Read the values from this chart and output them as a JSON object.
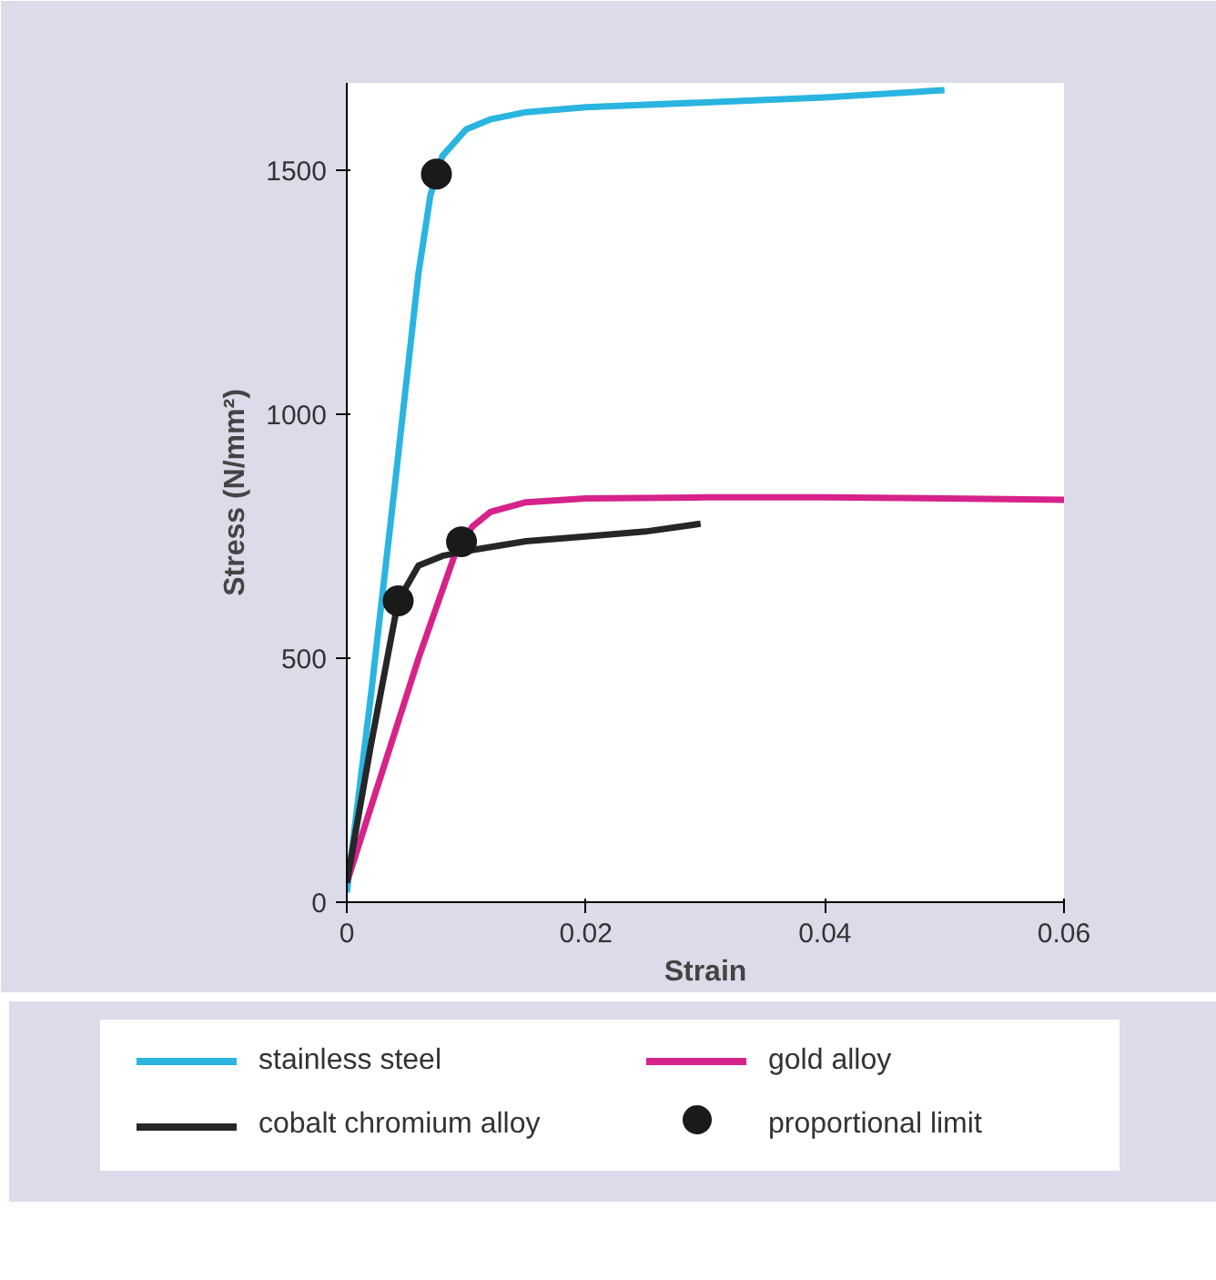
{
  "chart_data": {
    "type": "line",
    "xlabel": "Strain",
    "ylabel": "Stress (N/mm²)",
    "xlim": [
      0,
      0.06
    ],
    "ylim": [
      0,
      1680
    ],
    "xticks": [
      0,
      0.02,
      0.04,
      0.06
    ],
    "yticks": [
      0,
      500,
      1000,
      1500
    ],
    "grid": false,
    "legend": "bottom",
    "line_style": "solid",
    "series": [
      {
        "name": "stainless steel",
        "color": "#2ab4e0",
        "x": [
          0,
          0.002,
          0.004,
          0.006,
          0.007,
          0.008,
          0.01,
          0.012,
          0.015,
          0.02,
          0.03,
          0.04,
          0.05
        ],
        "values": [
          20,
          420,
          850,
          1290,
          1450,
          1530,
          1585,
          1605,
          1620,
          1630,
          1640,
          1650,
          1665
        ]
      },
      {
        "name": "gold alloy",
        "color": "#d6238a",
        "x": [
          0,
          0.003,
          0.006,
          0.009,
          0.0105,
          0.012,
          0.015,
          0.02,
          0.03,
          0.04,
          0.05,
          0.06
        ],
        "values": [
          40,
          270,
          500,
          710,
          770,
          800,
          820,
          828,
          830,
          830,
          828,
          825
        ]
      },
      {
        "name": "cobalt chromium alloy",
        "color": "#262626",
        "x": [
          0,
          0.002,
          0.0043,
          0.006,
          0.008,
          0.01,
          0.015,
          0.02,
          0.025,
          0.0296
        ],
        "values": [
          40,
          320,
          618,
          690,
          710,
          720,
          740,
          750,
          760,
          776
        ]
      },
      {
        "name": "proportional limit",
        "type": "scatter",
        "marker": "circle",
        "color": "#1a1a1a",
        "x": [
          0.0075,
          0.0043,
          0.0096
        ],
        "values": [
          1493,
          618,
          739
        ]
      }
    ]
  }
}
